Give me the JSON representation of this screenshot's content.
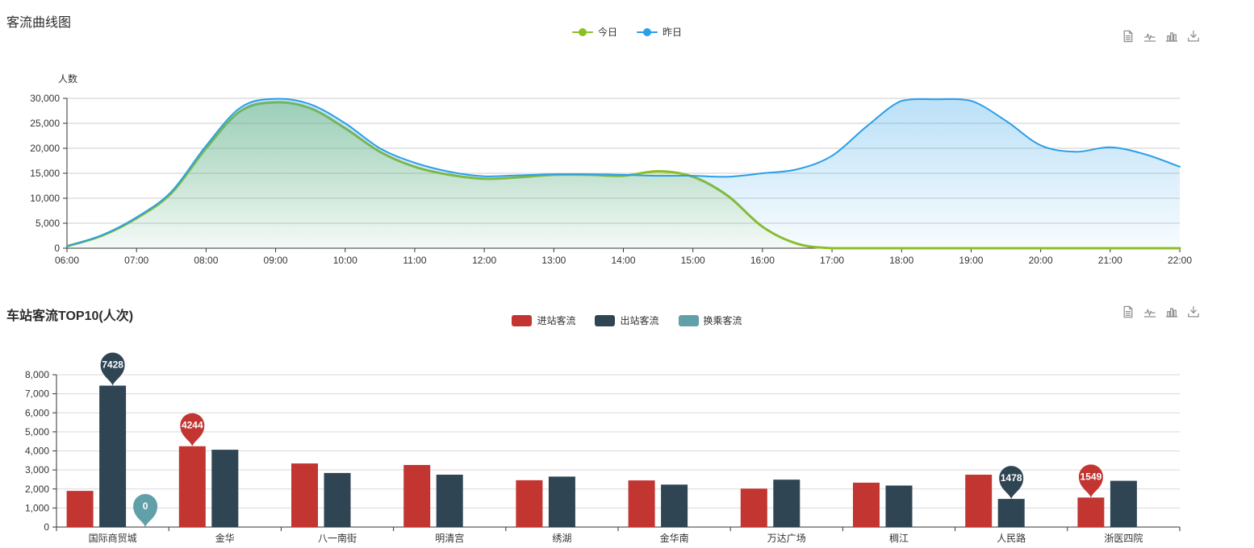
{
  "chart_data": [
    {
      "type": "line",
      "title": "客流曲线图",
      "ylabel": "人数",
      "xlabel": "",
      "x_start": 6,
      "x_end": 22,
      "x_step": 0.5,
      "x_tick_labels": [
        "06:00",
        "07:00",
        "08:00",
        "09:00",
        "10:00",
        "11:00",
        "12:00",
        "13:00",
        "14:00",
        "15:00",
        "16:00",
        "17:00",
        "18:00",
        "19:00",
        "20:00",
        "21:00",
        "22:00"
      ],
      "ylim": [
        0,
        30000
      ],
      "y_ticks": [
        0,
        5000,
        10000,
        15000,
        20000,
        25000,
        30000
      ],
      "grid": true,
      "legend_position": "top-center",
      "series": [
        {
          "name": "今日",
          "color": "#8cbf26",
          "area": true,
          "values": [
            400,
            2500,
            6000,
            11000,
            20000,
            27500,
            29200,
            28000,
            24000,
            19300,
            16300,
            14700,
            13900,
            14200,
            14700,
            14700,
            14500,
            15400,
            14300,
            10500,
            4300,
            900,
            0,
            0,
            0,
            0,
            0,
            0,
            0,
            0,
            0,
            0,
            0
          ]
        },
        {
          "name": "昨日",
          "color": "#2b9fe8",
          "area": true,
          "values": [
            400,
            2600,
            6200,
            11300,
            20500,
            28200,
            29900,
            28800,
            25000,
            20000,
            17100,
            15300,
            14400,
            14600,
            14800,
            14800,
            14700,
            14500,
            14500,
            14300,
            15000,
            15800,
            18500,
            24400,
            29500,
            29800,
            29500,
            25500,
            20600,
            19300,
            20200,
            18800,
            16300
          ]
        }
      ]
    },
    {
      "type": "bar",
      "title": "车站客流TOP10(人次)",
      "xlabel": "",
      "ylabel": "",
      "categories": [
        "国际商贸城",
        "金华",
        "八一南街",
        "明清宫",
        "绣湖",
        "金华南",
        "万达广场",
        "稠江",
        "人民路",
        "浙医四院"
      ],
      "ylim": [
        0,
        8000
      ],
      "y_ticks": [
        0,
        1000,
        2000,
        3000,
        4000,
        5000,
        6000,
        7000,
        8000
      ],
      "grid": true,
      "legend_position": "top-center",
      "series": [
        {
          "name": "进站客流",
          "color": "#c23531",
          "values": [
            1900,
            4244,
            3340,
            3260,
            2460,
            2450,
            2020,
            2330,
            2750,
            1549
          ]
        },
        {
          "name": "出站客流",
          "color": "#2f4554",
          "values": [
            7428,
            4060,
            2840,
            2750,
            2650,
            2230,
            2490,
            2180,
            1478,
            2430
          ]
        },
        {
          "name": "换乘客流",
          "color": "#61a0a8",
          "values": [
            0,
            0,
            0,
            0,
            0,
            0,
            0,
            0,
            0,
            0
          ]
        }
      ],
      "markpoints": [
        {
          "series": 1,
          "category": 0,
          "label": "7428",
          "value": 7428
        },
        {
          "series": 0,
          "category": 1,
          "label": "4244",
          "value": 4244
        },
        {
          "series": 2,
          "category": 0,
          "label": "0",
          "value": 0
        },
        {
          "series": 1,
          "category": 8,
          "label": "1478",
          "value": 1478
        },
        {
          "series": 0,
          "category": 9,
          "label": "1549",
          "value": 1549
        }
      ]
    }
  ],
  "toolbox_icons": [
    {
      "name": "data-view-icon"
    },
    {
      "name": "line-type-icon"
    },
    {
      "name": "bar-type-icon"
    },
    {
      "name": "download-icon"
    }
  ]
}
